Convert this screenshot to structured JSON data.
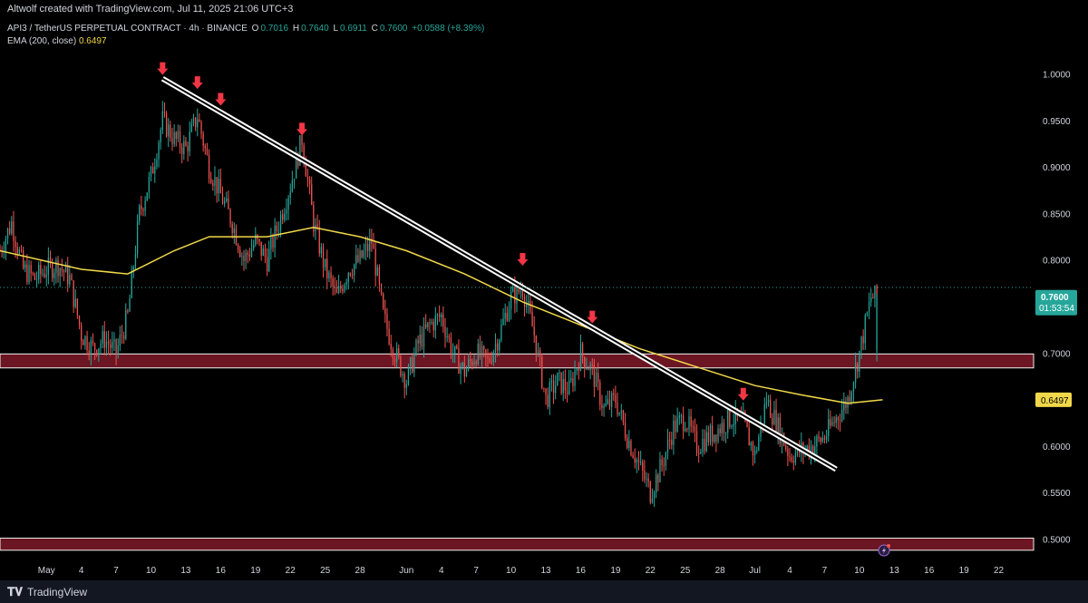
{
  "header": {
    "credit": "Altwolf created with TradingView.com, Jul 11, 2025 21:06 UTC+3"
  },
  "legend": {
    "symbol": "API3 / TetherUS PERPETUAL CONTRACT · 4h · BINANCE",
    "open_label": "O",
    "open": "0.7016",
    "high_label": "H",
    "high": "0.7640",
    "low_label": "L",
    "low": "0.6911",
    "close_label": "C",
    "close": "0.7600",
    "change": "+0.0588 (+8.39%)",
    "ema_label": "EMA (200, close)",
    "ema_value": "0.6497"
  },
  "footer": {
    "brand": "TradingView"
  },
  "colors": {
    "up": "#26a69a",
    "down": "#ef5350",
    "ema": "#f0d84a",
    "zone": "#6b1622",
    "zone_border": "#f2f2f2",
    "arrow": "#f23645",
    "price_tag": "#26a69a",
    "ema_tag": "#f0d84a"
  },
  "chart_data": {
    "type": "candlestick",
    "timeframe": "4h",
    "yticks": [
      "1.0000",
      "0.9500",
      "0.9000",
      "0.8500",
      "0.8000",
      "0.7500",
      "0.7000",
      "0.6500",
      "0.6000",
      "0.5500",
      "0.5000"
    ],
    "ylim": [
      0.48,
      1.06
    ],
    "xticks": [
      {
        "label": "May",
        "date": "2025-05-01"
      },
      {
        "label": "4",
        "date": "2025-05-04"
      },
      {
        "label": "7",
        "date": "2025-05-07"
      },
      {
        "label": "10",
        "date": "2025-05-10"
      },
      {
        "label": "13",
        "date": "2025-05-13"
      },
      {
        "label": "16",
        "date": "2025-05-16"
      },
      {
        "label": "19",
        "date": "2025-05-19"
      },
      {
        "label": "22",
        "date": "2025-05-22"
      },
      {
        "label": "25",
        "date": "2025-05-25"
      },
      {
        "label": "28",
        "date": "2025-05-28"
      },
      {
        "label": "Jun",
        "date": "2025-06-01"
      },
      {
        "label": "4",
        "date": "2025-06-04"
      },
      {
        "label": "7",
        "date": "2025-06-07"
      },
      {
        "label": "10",
        "date": "2025-06-10"
      },
      {
        "label": "13",
        "date": "2025-06-13"
      },
      {
        "label": "16",
        "date": "2025-06-16"
      },
      {
        "label": "19",
        "date": "2025-06-19"
      },
      {
        "label": "22",
        "date": "2025-06-22"
      },
      {
        "label": "25",
        "date": "2025-06-25"
      },
      {
        "label": "28",
        "date": "2025-06-28"
      },
      {
        "label": "Jul",
        "date": "2025-07-01"
      },
      {
        "label": "4",
        "date": "2025-07-04"
      },
      {
        "label": "7",
        "date": "2025-07-07"
      },
      {
        "label": "10",
        "date": "2025-07-10"
      },
      {
        "label": "13",
        "date": "2025-07-13"
      },
      {
        "label": "16",
        "date": "2025-07-16"
      },
      {
        "label": "19",
        "date": "2025-07-19"
      },
      {
        "label": "22",
        "date": "2025-07-22"
      }
    ],
    "xlim": [
      "2025-04-27",
      "2025-07-25"
    ],
    "price_path": [
      [
        "2025-04-27",
        0.81
      ],
      [
        "2025-04-28",
        0.84
      ],
      [
        "2025-04-29",
        0.79
      ],
      [
        "2025-04-30",
        0.78
      ],
      [
        "2025-05-01",
        0.79
      ],
      [
        "2025-05-02",
        0.795
      ],
      [
        "2025-05-03",
        0.78
      ],
      [
        "2025-05-04",
        0.72
      ],
      [
        "2025-05-05",
        0.705
      ],
      [
        "2025-05-06",
        0.715
      ],
      [
        "2025-05-07",
        0.7
      ],
      [
        "2025-05-08",
        0.74
      ],
      [
        "2025-05-09",
        0.85
      ],
      [
        "2025-05-10",
        0.89
      ],
      [
        "2025-05-11",
        0.95
      ],
      [
        "2025-05-12",
        0.93
      ],
      [
        "2025-05-13",
        0.92
      ],
      [
        "2025-05-14",
        0.955
      ],
      [
        "2025-05-15",
        0.9
      ],
      [
        "2025-05-16",
        0.87
      ],
      [
        "2025-05-17",
        0.84
      ],
      [
        "2025-05-18",
        0.8
      ],
      [
        "2025-05-19",
        0.82
      ],
      [
        "2025-05-20",
        0.8
      ],
      [
        "2025-05-21",
        0.84
      ],
      [
        "2025-05-22",
        0.88
      ],
      [
        "2025-05-23",
        0.93
      ],
      [
        "2025-05-24",
        0.84
      ],
      [
        "2025-05-25",
        0.79
      ],
      [
        "2025-05-26",
        0.76
      ],
      [
        "2025-05-27",
        0.79
      ],
      [
        "2025-05-28",
        0.8
      ],
      [
        "2025-05-29",
        0.82
      ],
      [
        "2025-05-30",
        0.74
      ],
      [
        "2025-05-31",
        0.7
      ],
      [
        "2025-06-01",
        0.67
      ],
      [
        "2025-06-02",
        0.71
      ],
      [
        "2025-06-03",
        0.73
      ],
      [
        "2025-06-04",
        0.74
      ],
      [
        "2025-06-05",
        0.7
      ],
      [
        "2025-06-06",
        0.68
      ],
      [
        "2025-06-07",
        0.7
      ],
      [
        "2025-06-08",
        0.69
      ],
      [
        "2025-06-09",
        0.72
      ],
      [
        "2025-06-10",
        0.76
      ],
      [
        "2025-06-11",
        0.77
      ],
      [
        "2025-06-12",
        0.72
      ],
      [
        "2025-06-13",
        0.65
      ],
      [
        "2025-06-14",
        0.67
      ],
      [
        "2025-06-15",
        0.66
      ],
      [
        "2025-06-16",
        0.7
      ],
      [
        "2025-06-17",
        0.68
      ],
      [
        "2025-06-18",
        0.64
      ],
      [
        "2025-06-19",
        0.65
      ],
      [
        "2025-06-20",
        0.61
      ],
      [
        "2025-06-21",
        0.58
      ],
      [
        "2025-06-22",
        0.55
      ],
      [
        "2025-06-23",
        0.58
      ],
      [
        "2025-06-24",
        0.62
      ],
      [
        "2025-06-25",
        0.63
      ],
      [
        "2025-06-26",
        0.6
      ],
      [
        "2025-06-27",
        0.61
      ],
      [
        "2025-06-28",
        0.62
      ],
      [
        "2025-06-29",
        0.63
      ],
      [
        "2025-06-30",
        0.625
      ],
      [
        "2025-07-01",
        0.59
      ],
      [
        "2025-07-02",
        0.65
      ],
      [
        "2025-07-03",
        0.62
      ],
      [
        "2025-07-04",
        0.59
      ],
      [
        "2025-07-05",
        0.595
      ],
      [
        "2025-07-06",
        0.6
      ],
      [
        "2025-07-07",
        0.61
      ],
      [
        "2025-07-08",
        0.63
      ],
      [
        "2025-07-09",
        0.65
      ],
      [
        "2025-07-10",
        0.7
      ],
      [
        "2025-07-11",
        0.76
      ]
    ],
    "ema_path": [
      [
        "2025-04-27",
        0.81
      ],
      [
        "2025-05-04",
        0.79
      ],
      [
        "2025-05-08",
        0.785
      ],
      [
        "2025-05-12",
        0.81
      ],
      [
        "2025-05-15",
        0.825
      ],
      [
        "2025-05-20",
        0.825
      ],
      [
        "2025-05-24",
        0.835
      ],
      [
        "2025-05-28",
        0.825
      ],
      [
        "2025-06-01",
        0.81
      ],
      [
        "2025-06-06",
        0.785
      ],
      [
        "2025-06-11",
        0.755
      ],
      [
        "2025-06-16",
        0.73
      ],
      [
        "2025-06-21",
        0.705
      ],
      [
        "2025-06-26",
        0.685
      ],
      [
        "2025-07-01",
        0.665
      ],
      [
        "2025-07-05",
        0.655
      ],
      [
        "2025-07-09",
        0.646
      ],
      [
        "2025-07-12",
        0.6497
      ]
    ],
    "trendline": {
      "start": [
        "2025-05-11",
        0.995
      ],
      "end": [
        "2025-07-08",
        0.575
      ]
    },
    "resistance_arrows": [
      [
        "2025-05-11",
        0.995
      ],
      [
        "2025-05-14",
        0.98
      ],
      [
        "2025-05-16",
        0.962
      ],
      [
        "2025-05-23",
        0.93
      ],
      [
        "2025-06-11",
        0.79
      ],
      [
        "2025-06-17",
        0.728
      ],
      [
        "2025-06-30",
        0.645
      ]
    ],
    "zones": [
      {
        "top": 0.699,
        "bottom": 0.684
      },
      {
        "top": 0.501,
        "bottom": 0.488
      }
    ],
    "current_price": {
      "value": 0.76,
      "label": "0.7600",
      "countdown": "01:53:54"
    },
    "ema_current": {
      "value": 0.6497,
      "label": "0.6497"
    }
  }
}
